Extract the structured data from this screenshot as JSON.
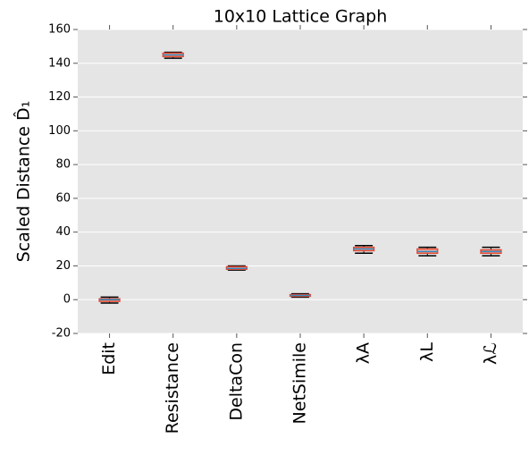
{
  "chart_data": {
    "type": "box",
    "title": "10x10 Lattice Graph",
    "y_label": "Scaled Distance D̂₁",
    "categories": [
      "Edit",
      "Resistance",
      "DeltaCon",
      "NetSimile",
      "λA",
      "λL",
      "λℒ"
    ],
    "whisker_low": [
      -2,
      143,
      17.5,
      1.5,
      27.5,
      26,
      26
    ],
    "q1": [
      -1,
      144,
      18,
      2,
      29,
      27.5,
      27.5
    ],
    "median": [
      0,
      145,
      18.5,
      2.5,
      30,
      28.5,
      28.5
    ],
    "q3": [
      0.5,
      146,
      19.5,
      3,
      31,
      30,
      29.5
    ],
    "whisker_high": [
      1.5,
      146.5,
      20,
      3.5,
      32,
      31,
      31
    ],
    "box_color": "#e24a33",
    "median_color": "#348abd",
    "whisker_color": "#000000",
    "ylim": [
      -20,
      160
    ],
    "yticks": [
      -20,
      0,
      20,
      40,
      60,
      80,
      100,
      120,
      140,
      160
    ],
    "grid": true
  }
}
